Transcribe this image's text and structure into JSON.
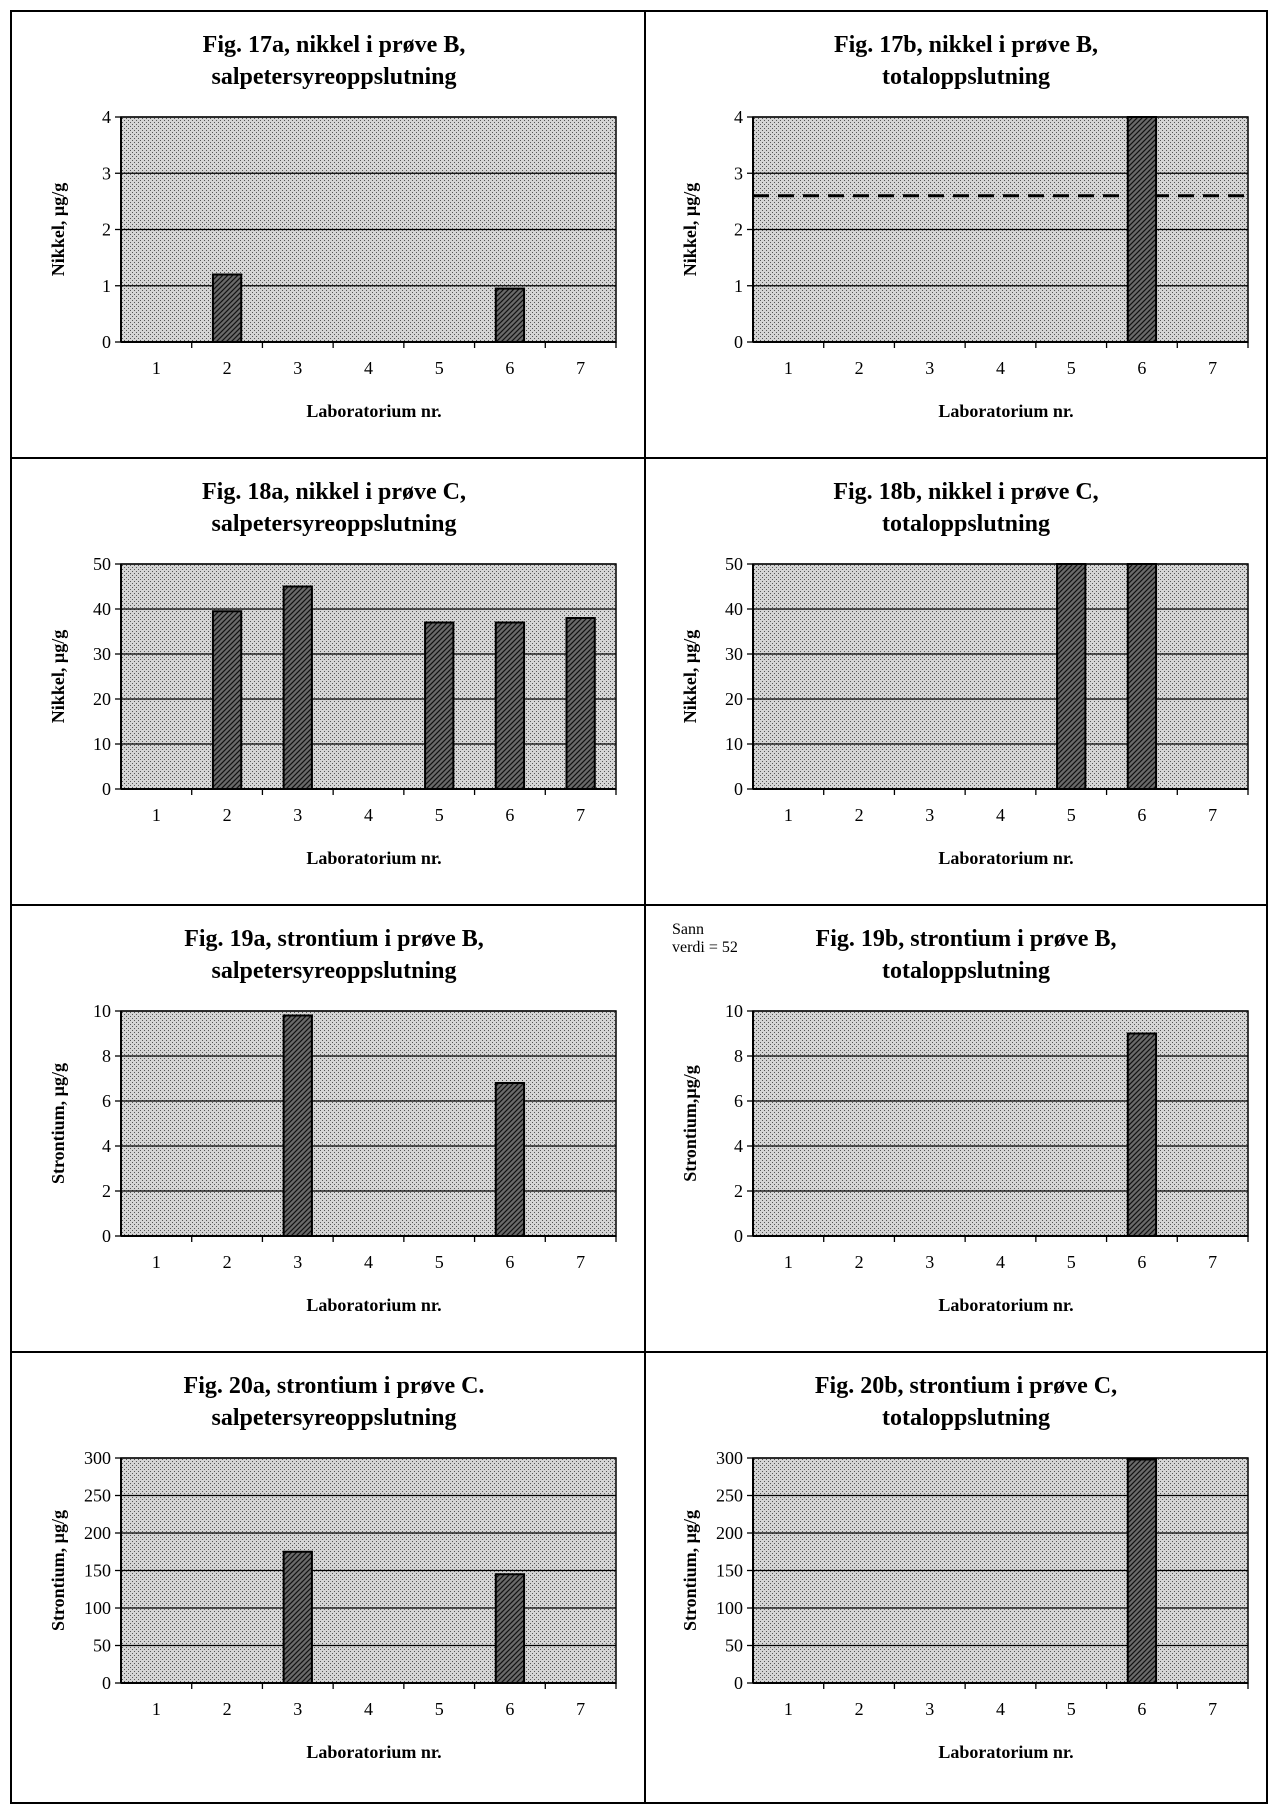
{
  "chart_data": [
    {
      "id": "17a",
      "type": "bar",
      "title_line1": "Fig. 17a, nikkel i prøve B,",
      "title_line2": "salpetersyreoppslutning",
      "xlabel": "Laboratorium nr.",
      "ylabel": "Nikkel, µg/g",
      "categories": [
        "1",
        "2",
        "3",
        "4",
        "5",
        "6",
        "7"
      ],
      "values": [
        null,
        1.2,
        null,
        null,
        null,
        0.95,
        null
      ],
      "ylim": [
        0,
        4
      ],
      "yticks": [
        "0",
        "1",
        "2",
        "3",
        "4"
      ],
      "grid": true
    },
    {
      "id": "17b",
      "type": "bar",
      "title_line1": "Fig. 17b, nikkel i prøve B,",
      "title_line2": "totaloppslutning",
      "xlabel": "Laboratorium nr.",
      "ylabel": "Nikkel, µg/g",
      "categories": [
        "1",
        "2",
        "3",
        "4",
        "5",
        "6",
        "7"
      ],
      "values": [
        null,
        null,
        null,
        null,
        null,
        4.0,
        null
      ],
      "ylim": [
        0,
        4
      ],
      "yticks": [
        "0",
        "1",
        "2",
        "3",
        "4"
      ],
      "grid": true,
      "reference_line": 2.6
    },
    {
      "id": "18a",
      "type": "bar",
      "title_line1": "Fig. 18a, nikkel i prøve C,",
      "title_line2": "salpetersyreoppslutning",
      "xlabel": "Laboratorium nr.",
      "ylabel": "Nikkel, µg/g",
      "categories": [
        "1",
        "2",
        "3",
        "4",
        "5",
        "6",
        "7"
      ],
      "values": [
        null,
        39.5,
        45,
        null,
        37,
        37,
        38
      ],
      "ylim": [
        0,
        50
      ],
      "yticks": [
        "0",
        "10",
        "20",
        "30",
        "40",
        "50"
      ],
      "grid": true
    },
    {
      "id": "18b",
      "type": "bar",
      "title_line1": "Fig. 18b, nikkel i prøve C,",
      "title_line2": "totaloppslutning",
      "xlabel": "Laboratorium nr.",
      "ylabel": "Nikkel, µg/g",
      "categories": [
        "1",
        "2",
        "3",
        "4",
        "5",
        "6",
        "7"
      ],
      "values": [
        null,
        null,
        null,
        null,
        50,
        50,
        null
      ],
      "ylim": [
        0,
        50
      ],
      "yticks": [
        "0",
        "10",
        "20",
        "30",
        "40",
        "50"
      ],
      "grid": true
    },
    {
      "id": "19a",
      "type": "bar",
      "title_line1": "Fig. 19a, strontium i prøve B,",
      "title_line2": "salpetersyreoppslutning",
      "xlabel": "Laboratorium nr.",
      "ylabel": "Strontium, µg/g",
      "categories": [
        "1",
        "2",
        "3",
        "4",
        "5",
        "6",
        "7"
      ],
      "values": [
        null,
        null,
        9.8,
        null,
        null,
        6.8,
        null
      ],
      "ylim": [
        0,
        10
      ],
      "yticks": [
        "0",
        "2",
        "4",
        "6",
        "8",
        "10"
      ],
      "grid": true
    },
    {
      "id": "19b",
      "type": "bar",
      "title_line1": "Fig. 19b, strontium i prøve B,",
      "title_line2": "totaloppslutning",
      "xlabel": "Laboratorium nr.",
      "ylabel": "Strontium,µg/g",
      "categories": [
        "1",
        "2",
        "3",
        "4",
        "5",
        "6",
        "7"
      ],
      "values": [
        null,
        null,
        null,
        null,
        null,
        9.0,
        null
      ],
      "ylim": [
        0,
        10
      ],
      "yticks": [
        "0",
        "2",
        "4",
        "6",
        "8",
        "10"
      ],
      "grid": true,
      "note_line1": "Sann",
      "note_line2": "verdi =  52"
    },
    {
      "id": "20a",
      "type": "bar",
      "title_line1": "Fig. 20a, strontium i prøve C.",
      "title_line2": "salpetersyreoppslutning",
      "xlabel": "Laboratorium nr.",
      "ylabel": "Strontium, µg/g",
      "categories": [
        "1",
        "2",
        "3",
        "4",
        "5",
        "6",
        "7"
      ],
      "values": [
        null,
        null,
        175,
        null,
        null,
        145,
        null
      ],
      "ylim": [
        0,
        300
      ],
      "yticks": [
        "0",
        "50",
        "100",
        "150",
        "200",
        "250",
        "300"
      ],
      "grid": true
    },
    {
      "id": "20b",
      "type": "bar",
      "title_line1": "Fig. 20b, strontium i prøve C,",
      "title_line2": "totaloppslutning",
      "xlabel": "Laboratorium nr.",
      "ylabel": "Strontium, µg/g",
      "categories": [
        "1",
        "2",
        "3",
        "4",
        "5",
        "6",
        "7"
      ],
      "values": [
        null,
        null,
        null,
        null,
        null,
        298,
        null
      ],
      "ylim": [
        0,
        300
      ],
      "yticks": [
        "0",
        "50",
        "100",
        "150",
        "200",
        "250",
        "300"
      ],
      "grid": true
    }
  ]
}
